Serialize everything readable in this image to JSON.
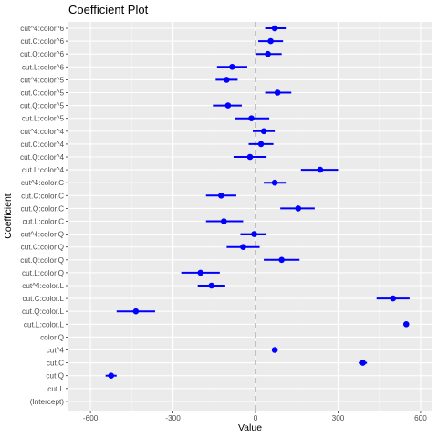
{
  "chart_data": {
    "type": "coefficient-plot",
    "title": "Coefficient Plot",
    "xlabel": "Value",
    "ylabel": "Coefficient",
    "xlim": [
      -680,
      640
    ],
    "xticks": [
      -600,
      -300,
      0,
      300,
      600
    ],
    "zero_line": 0,
    "grid": true,
    "point_color": "#0000ff",
    "interval_color": "#0000ff",
    "zero_line_color": "#bfbfbf",
    "panel_color": "#ebebeb",
    "coefficients": [
      {
        "name": "cut^4:color^6",
        "value": 70,
        "low": 35,
        "high": 110
      },
      {
        "name": "cut.C:color^6",
        "value": 55,
        "low": 10,
        "high": 100
      },
      {
        "name": "cut.Q:color^6",
        "value": 45,
        "low": 0,
        "high": 95
      },
      {
        "name": "cut.L:color^6",
        "value": -85,
        "low": -140,
        "high": -30
      },
      {
        "name": "cut^4:color^5",
        "value": -105,
        "low": -145,
        "high": -65
      },
      {
        "name": "cut.C:color^5",
        "value": 80,
        "low": 35,
        "high": 130
      },
      {
        "name": "cut.Q:color^5",
        "value": -100,
        "low": -155,
        "high": -50
      },
      {
        "name": "cut.L:color^5",
        "value": -15,
        "low": -75,
        "high": 50
      },
      {
        "name": "cut^4:color^4",
        "value": 30,
        "low": -10,
        "high": 70
      },
      {
        "name": "cut.C:color^4",
        "value": 20,
        "low": -25,
        "high": 65
      },
      {
        "name": "cut.Q:color^4",
        "value": -20,
        "low": -80,
        "high": 40
      },
      {
        "name": "cut.L:color^4",
        "value": 235,
        "low": 165,
        "high": 300
      },
      {
        "name": "cut^4:color.C",
        "value": 70,
        "low": 30,
        "high": 110
      },
      {
        "name": "cut.C:color.C",
        "value": -125,
        "low": -180,
        "high": -70
      },
      {
        "name": "cut.Q:color.C",
        "value": 155,
        "low": 90,
        "high": 215
      },
      {
        "name": "cut.L:color.C",
        "value": -115,
        "low": -180,
        "high": -45
      },
      {
        "name": "cut^4:color.Q",
        "value": -5,
        "low": -55,
        "high": 40
      },
      {
        "name": "cut.C:color.Q",
        "value": -45,
        "low": -105,
        "high": 15
      },
      {
        "name": "cut.Q:color.Q",
        "value": 95,
        "low": 30,
        "high": 160
      },
      {
        "name": "cut.L:color.Q",
        "value": -200,
        "low": -270,
        "high": -130
      },
      {
        "name": "cut^4:color.L",
        "value": -160,
        "low": -210,
        "high": -110
      },
      {
        "name": "cut.C:color.L",
        "value": 500,
        "low": 440,
        "high": 560
      },
      {
        "name": "cut.Q:color.L",
        "value": -435,
        "low": -505,
        "high": -365
      },
      {
        "name": "cut.L:color.L",
        "value": 548,
        "low": 545,
        "high": 551
      },
      {
        "name": "color.Q",
        "value": null,
        "low": null,
        "high": null
      },
      {
        "name": "cut^4",
        "value": 70,
        "low": 60,
        "high": 80
      },
      {
        "name": "cut.C",
        "value": 390,
        "low": 375,
        "high": 405
      },
      {
        "name": "cut.Q",
        "value": -525,
        "low": -545,
        "high": -505
      },
      {
        "name": "cut.L",
        "value": null,
        "low": null,
        "high": null
      },
      {
        "name": "(Intercept)",
        "value": null,
        "low": null,
        "high": null
      }
    ]
  }
}
